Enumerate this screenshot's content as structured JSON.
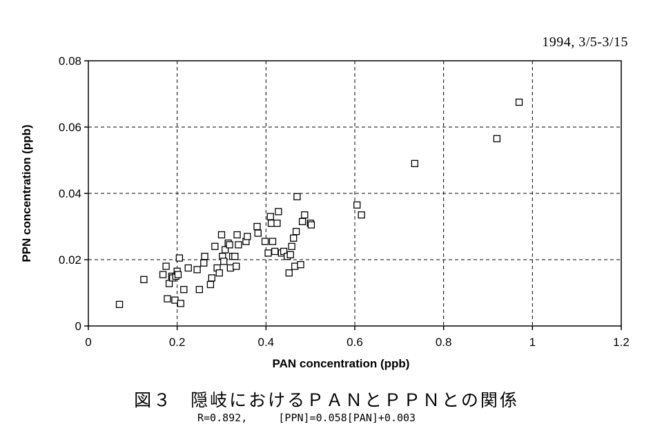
{
  "date_range": "1994, 3/5-3/15",
  "caption": {
    "number": "図３",
    "title": "隠岐におけるＰＡＮとＰＰＮとの関係",
    "stats": "R=0.892,     [PPN]=0.058[PAN]+0.003"
  },
  "chart_data": {
    "type": "scatter",
    "xlabel": "PAN concentration (ppb)",
    "ylabel": "PPN concentration  (ppb)",
    "xlim": [
      0,
      1.2
    ],
    "ylim": [
      0,
      0.08
    ],
    "xticks": [
      "0",
      "0.2",
      "0.4",
      "0.6",
      "0.8",
      "1",
      "1.2"
    ],
    "yticks": [
      "0",
      "0.02",
      "0.04",
      "0.06",
      "0.08"
    ],
    "grid": true,
    "marker": "open-square",
    "points": [
      [
        0.07,
        0.0065
      ],
      [
        0.125,
        0.014
      ],
      [
        0.168,
        0.0155
      ],
      [
        0.175,
        0.018
      ],
      [
        0.178,
        0.0082
      ],
      [
        0.182,
        0.0128
      ],
      [
        0.188,
        0.015
      ],
      [
        0.19,
        0.0145
      ],
      [
        0.195,
        0.0078
      ],
      [
        0.197,
        0.015
      ],
      [
        0.2,
        0.0165
      ],
      [
        0.202,
        0.0155
      ],
      [
        0.205,
        0.0205
      ],
      [
        0.208,
        0.0068
      ],
      [
        0.215,
        0.011
      ],
      [
        0.225,
        0.0175
      ],
      [
        0.245,
        0.017
      ],
      [
        0.25,
        0.011
      ],
      [
        0.26,
        0.019
      ],
      [
        0.262,
        0.021
      ],
      [
        0.275,
        0.0125
      ],
      [
        0.278,
        0.0145
      ],
      [
        0.285,
        0.024
      ],
      [
        0.29,
        0.0175
      ],
      [
        0.295,
        0.016
      ],
      [
        0.3,
        0.0275
      ],
      [
        0.302,
        0.021
      ],
      [
        0.305,
        0.0195
      ],
      [
        0.308,
        0.023
      ],
      [
        0.315,
        0.025
      ],
      [
        0.318,
        0.0245
      ],
      [
        0.32,
        0.0175
      ],
      [
        0.325,
        0.021
      ],
      [
        0.33,
        0.021
      ],
      [
        0.333,
        0.018
      ],
      [
        0.335,
        0.0275
      ],
      [
        0.338,
        0.0245
      ],
      [
        0.355,
        0.0255
      ],
      [
        0.358,
        0.027
      ],
      [
        0.38,
        0.03
      ],
      [
        0.382,
        0.028
      ],
      [
        0.398,
        0.0255
      ],
      [
        0.405,
        0.022
      ],
      [
        0.41,
        0.033
      ],
      [
        0.412,
        0.031
      ],
      [
        0.415,
        0.0255
      ],
      [
        0.42,
        0.0225
      ],
      [
        0.425,
        0.031
      ],
      [
        0.428,
        0.0345
      ],
      [
        0.435,
        0.022
      ],
      [
        0.44,
        0.0225
      ],
      [
        0.448,
        0.021
      ],
      [
        0.452,
        0.016
      ],
      [
        0.455,
        0.0215
      ],
      [
        0.458,
        0.024
      ],
      [
        0.462,
        0.0265
      ],
      [
        0.465,
        0.018
      ],
      [
        0.468,
        0.0285
      ],
      [
        0.47,
        0.039
      ],
      [
        0.478,
        0.0185
      ],
      [
        0.482,
        0.0315
      ],
      [
        0.487,
        0.0335
      ],
      [
        0.5,
        0.031
      ],
      [
        0.502,
        0.0305
      ],
      [
        0.605,
        0.0365
      ],
      [
        0.615,
        0.0335
      ],
      [
        0.735,
        0.049
      ],
      [
        0.92,
        0.0565
      ],
      [
        0.97,
        0.0675
      ]
    ]
  }
}
